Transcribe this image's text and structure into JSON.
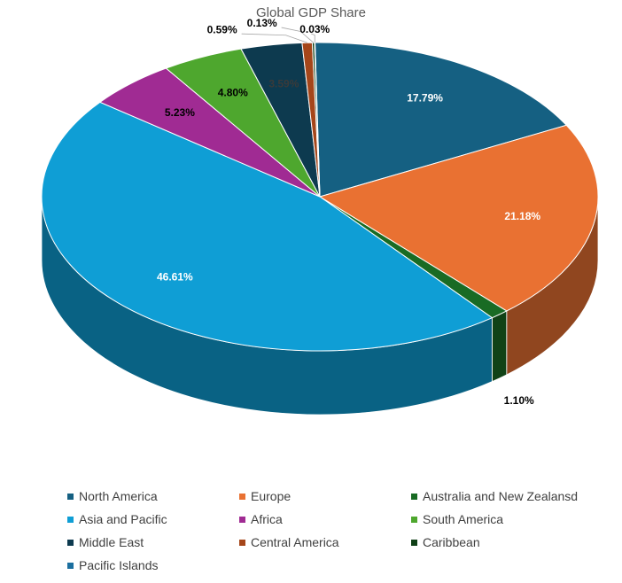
{
  "chart_data": {
    "type": "pie",
    "title": "Global GDP Share",
    "legend_position": "bottom",
    "slices": [
      {
        "name": "North America",
        "value": 17.79,
        "label": "17.79%",
        "color": "#156082"
      },
      {
        "name": "Europe",
        "value": 21.18,
        "label": "21.18%",
        "color": "#E97132"
      },
      {
        "name": "Australia and New Zealansd",
        "value": 1.1,
        "label": "1.10%",
        "color": "#196B24"
      },
      {
        "name": "Asia and Pacific",
        "value": 46.61,
        "label": "46.61%",
        "color": "#0F9ED5"
      },
      {
        "name": "Africa",
        "value": 5.23,
        "label": "5.23%",
        "color": "#A02B93"
      },
      {
        "name": "South America",
        "value": 4.8,
        "label": "4.80%",
        "color": "#4EA72E"
      },
      {
        "name": "Middle East",
        "value": 3.59,
        "label": "3.59%",
        "color": "#0D3A4F"
      },
      {
        "name": "Central America",
        "value": 0.59,
        "label": "0.59%",
        "color": "#A5461A"
      },
      {
        "name": "Caribbean",
        "value": 0.13,
        "label": "0.13%",
        "color": "#0E3F16"
      },
      {
        "name": "Pacific Islands",
        "value": 0.03,
        "label": "0.03%",
        "color": "#1B6F9F"
      }
    ]
  }
}
